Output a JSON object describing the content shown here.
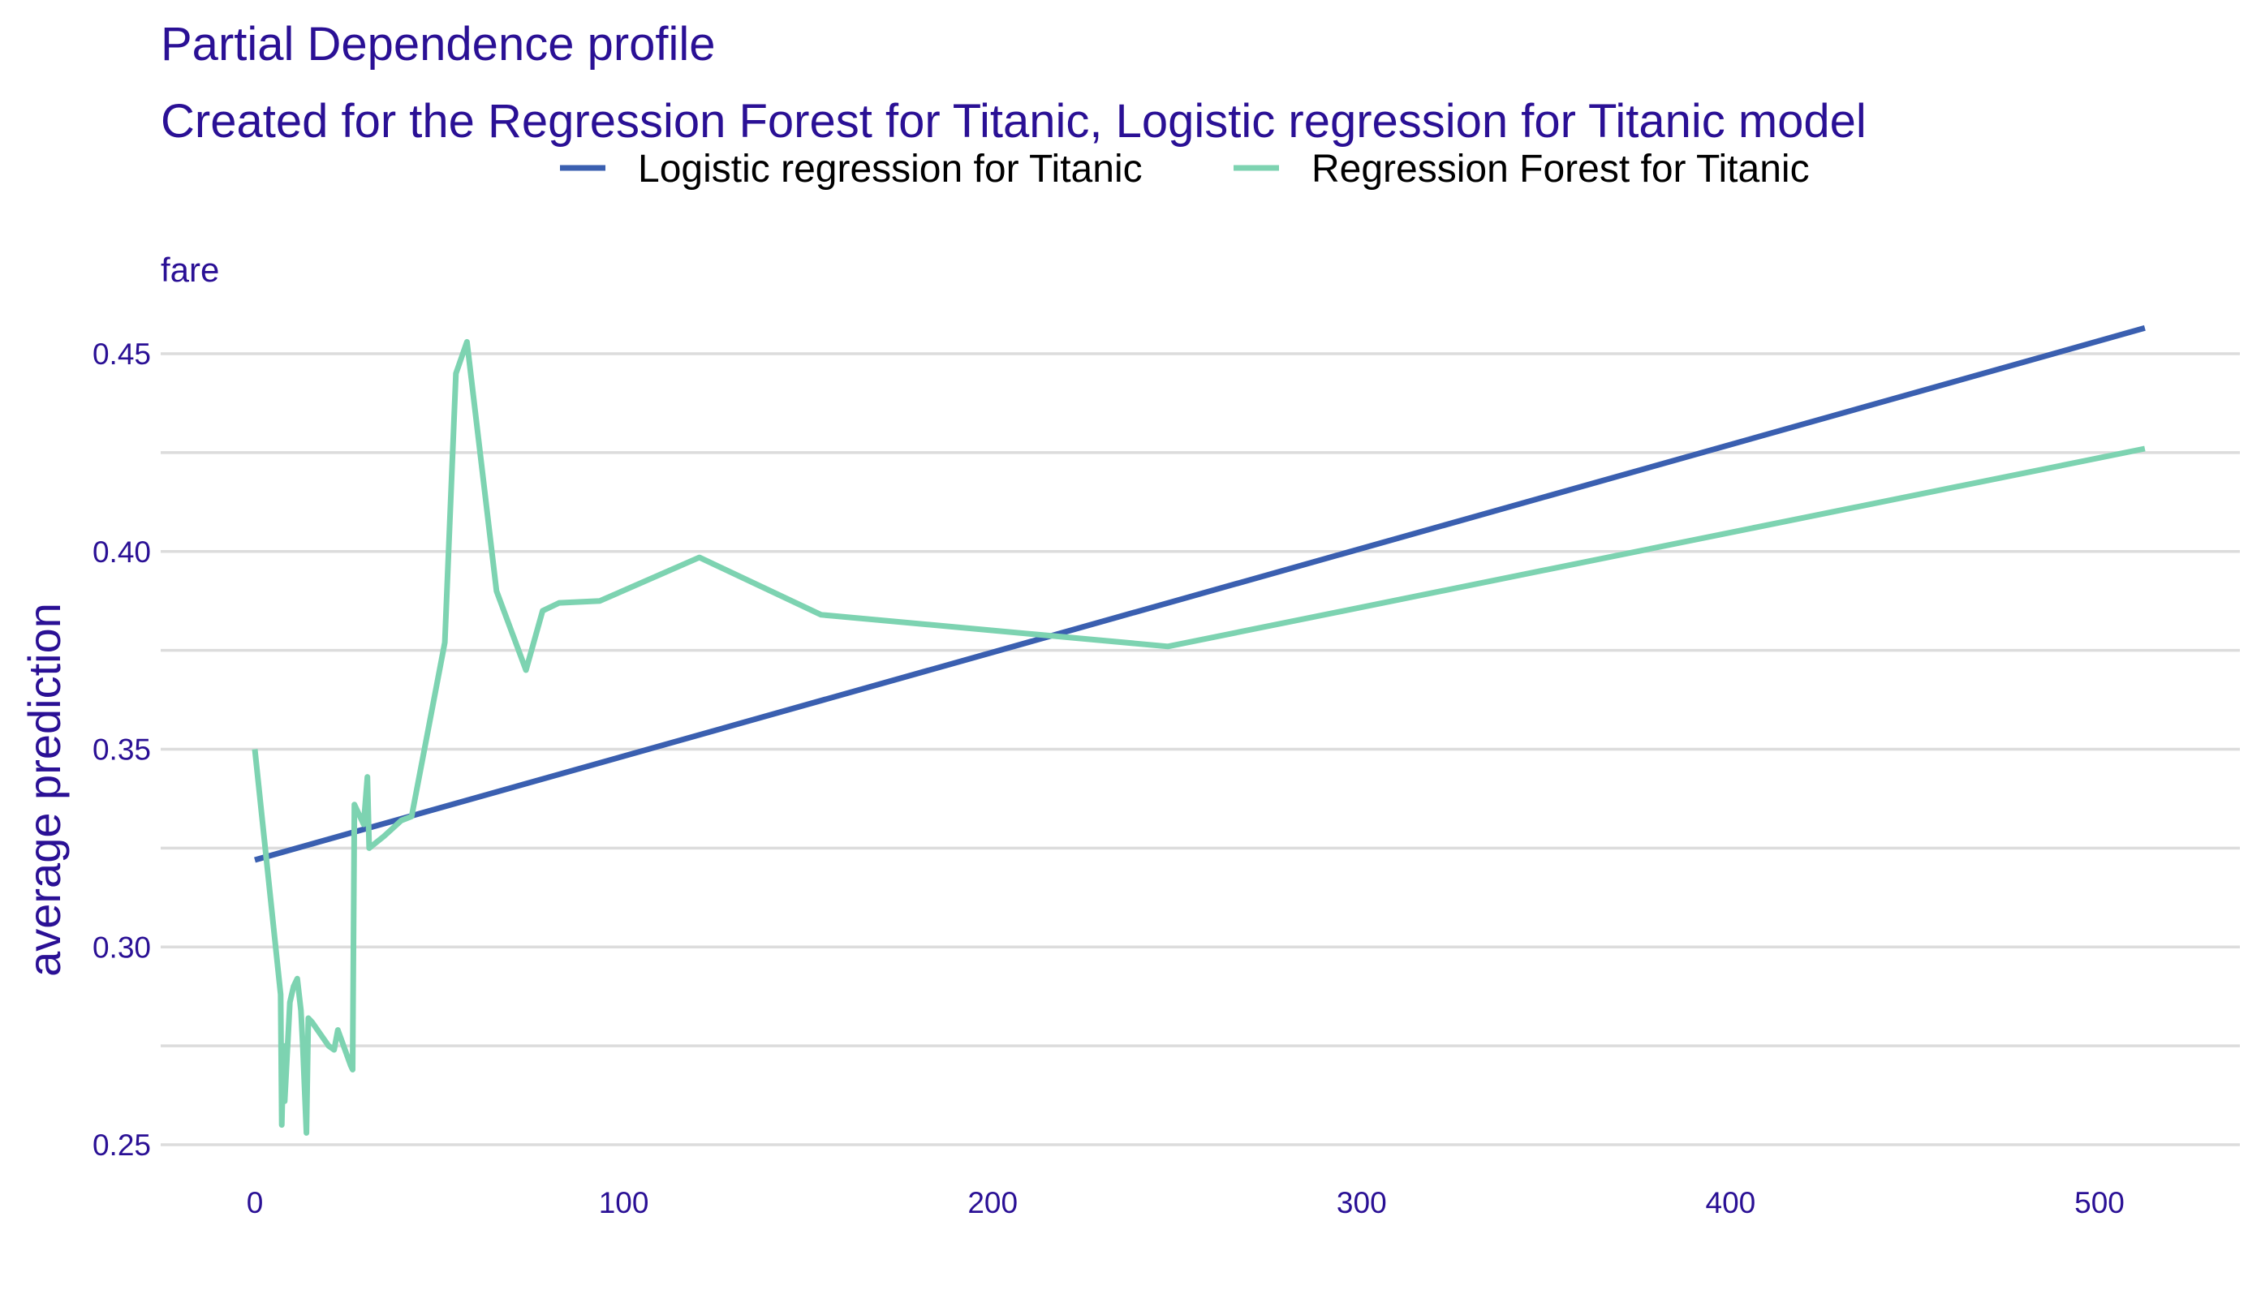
{
  "chart_data": {
    "type": "line",
    "title": "Partial Dependence profile",
    "subtitle": "Created for the Regression Forest for Titanic, Logistic regression for Titanic model",
    "panel_label": "fare",
    "xlabel": "",
    "ylabel": "average prediction",
    "xlim": [
      0,
      512
    ],
    "ylim": [
      0.25,
      0.455
    ],
    "x_ticks": [
      0,
      100,
      200,
      300,
      400,
      500
    ],
    "y_ticks": [
      0.25,
      0.3,
      0.35,
      0.4,
      0.45
    ],
    "y_tick_labels": [
      "0.25",
      "0.30",
      "0.35",
      "0.40",
      "0.45"
    ],
    "grid": "horizontal",
    "legend_position": "top",
    "series": [
      {
        "name": "Logistic regression for Titanic",
        "color": "#3a5fb0",
        "x": [
          0,
          512.3
        ],
        "y": [
          0.322,
          0.4565
        ]
      },
      {
        "name": "Regression Forest for Titanic",
        "color": "#7dd3b1",
        "x": [
          0,
          7,
          7.3,
          7.8,
          8.1,
          9.5,
          10.5,
          11.5,
          12.5,
          13,
          14,
          14.5,
          15.5,
          20,
          21.5,
          22.5,
          26,
          26.5,
          27,
          29.5,
          30.5,
          31,
          35,
          39.7,
          42.5,
          51.5,
          54.5,
          57.5,
          65.5,
          73.5,
          78,
          82.5,
          93.5,
          120.5,
          153.5,
          247.5,
          512.3
        ],
        "y": [
          0.35,
          0.288,
          0.255,
          0.275,
          0.261,
          0.286,
          0.29,
          0.292,
          0.284,
          0.275,
          0.253,
          0.282,
          0.281,
          0.275,
          0.274,
          0.279,
          0.27,
          0.269,
          0.336,
          0.331,
          0.343,
          0.325,
          0.328,
          0.332,
          0.333,
          0.377,
          0.445,
          0.453,
          0.39,
          0.37,
          0.385,
          0.387,
          0.3875,
          0.3985,
          0.384,
          0.376,
          0.426
        ]
      }
    ]
  }
}
